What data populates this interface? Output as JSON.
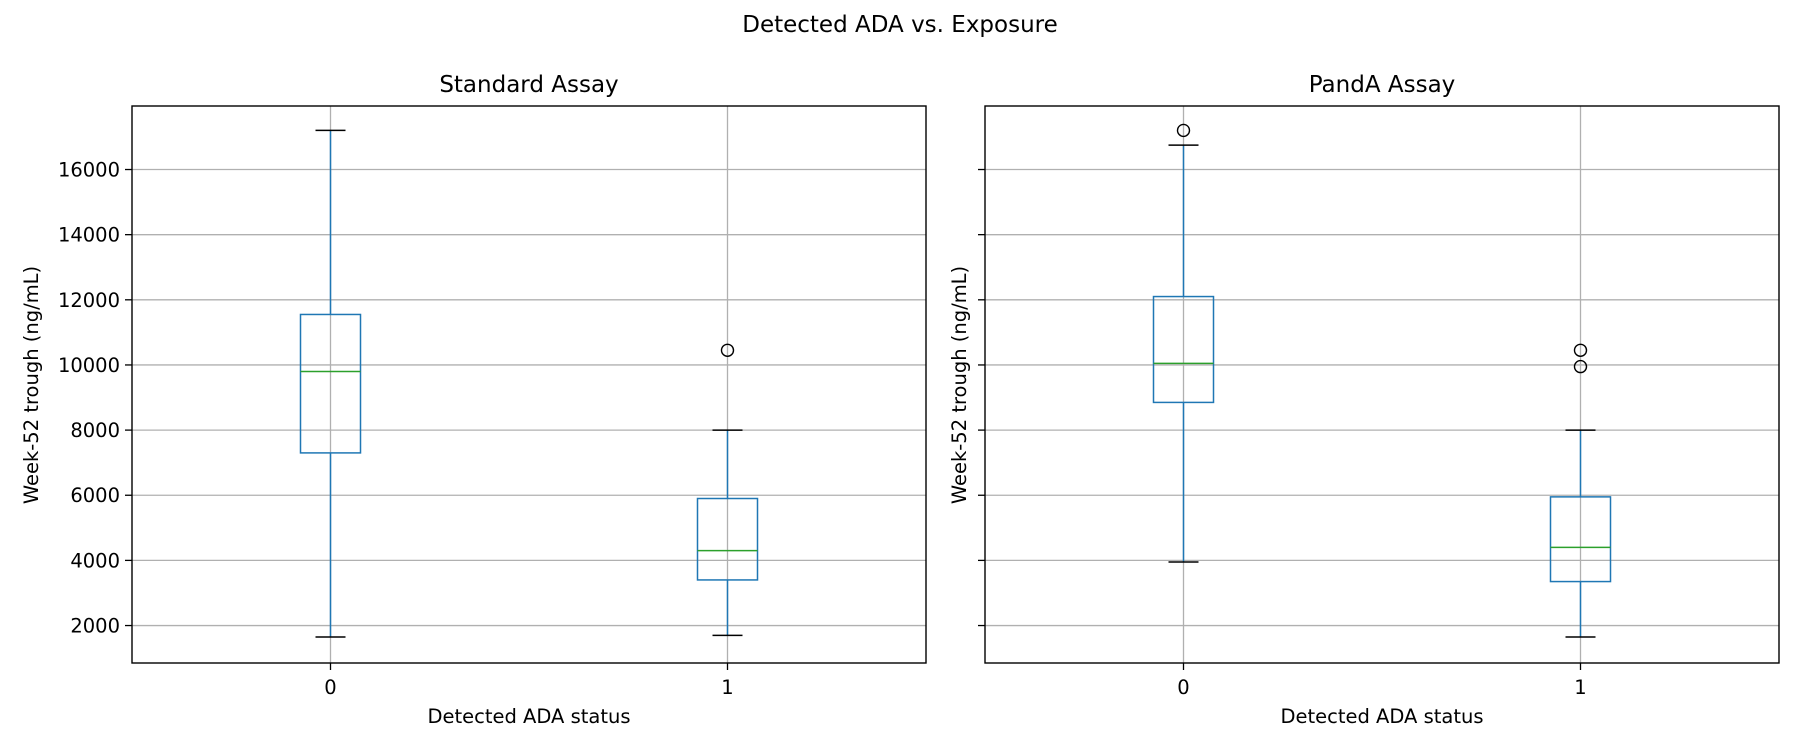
{
  "figure": {
    "suptitle": "Detected ADA vs. Exposure"
  },
  "chart_data": [
    {
      "type": "box",
      "title": "Standard Assay",
      "xlabel": "Detected ADA status",
      "ylabel": "Week-52 trough (ng/mL)",
      "categories": [
        "0",
        "1"
      ],
      "ylim": [
        850,
        17950
      ],
      "yticks": [
        2000,
        4000,
        6000,
        8000,
        10000,
        12000,
        14000,
        16000
      ],
      "grid": true,
      "boxes": [
        {
          "category": "0",
          "whisker_low": 1650,
          "q1": 7300,
          "median": 9800,
          "q3": 11550,
          "whisker_high": 17200,
          "outliers": []
        },
        {
          "category": "1",
          "whisker_low": 1700,
          "q1": 3400,
          "median": 4300,
          "q3": 5900,
          "whisker_high": 8000,
          "outliers": [
            10450
          ]
        }
      ]
    },
    {
      "type": "box",
      "title": "PandA Assay",
      "xlabel": "Detected ADA status",
      "ylabel": "Week-52 trough (ng/mL)",
      "categories": [
        "0",
        "1"
      ],
      "ylim": [
        850,
        17950
      ],
      "yticks": [
        2000,
        4000,
        6000,
        8000,
        10000,
        12000,
        14000,
        16000
      ],
      "show_ytick_labels": false,
      "grid": true,
      "boxes": [
        {
          "category": "0",
          "whisker_low": 3950,
          "q1": 8850,
          "median": 10050,
          "q3": 12100,
          "whisker_high": 16750,
          "outliers": [
            17200
          ]
        },
        {
          "category": "1",
          "whisker_low": 1650,
          "q1": 3350,
          "median": 4400,
          "q3": 5950,
          "whisker_high": 8000,
          "outliers": [
            10450,
            9950
          ]
        }
      ]
    }
  ],
  "colors": {
    "box": "#1f77b4",
    "median": "#2ca02c",
    "whisker_cap": "#000000",
    "outlier": "#000000",
    "grid": "#b0b0b0",
    "axes": "#000000"
  }
}
